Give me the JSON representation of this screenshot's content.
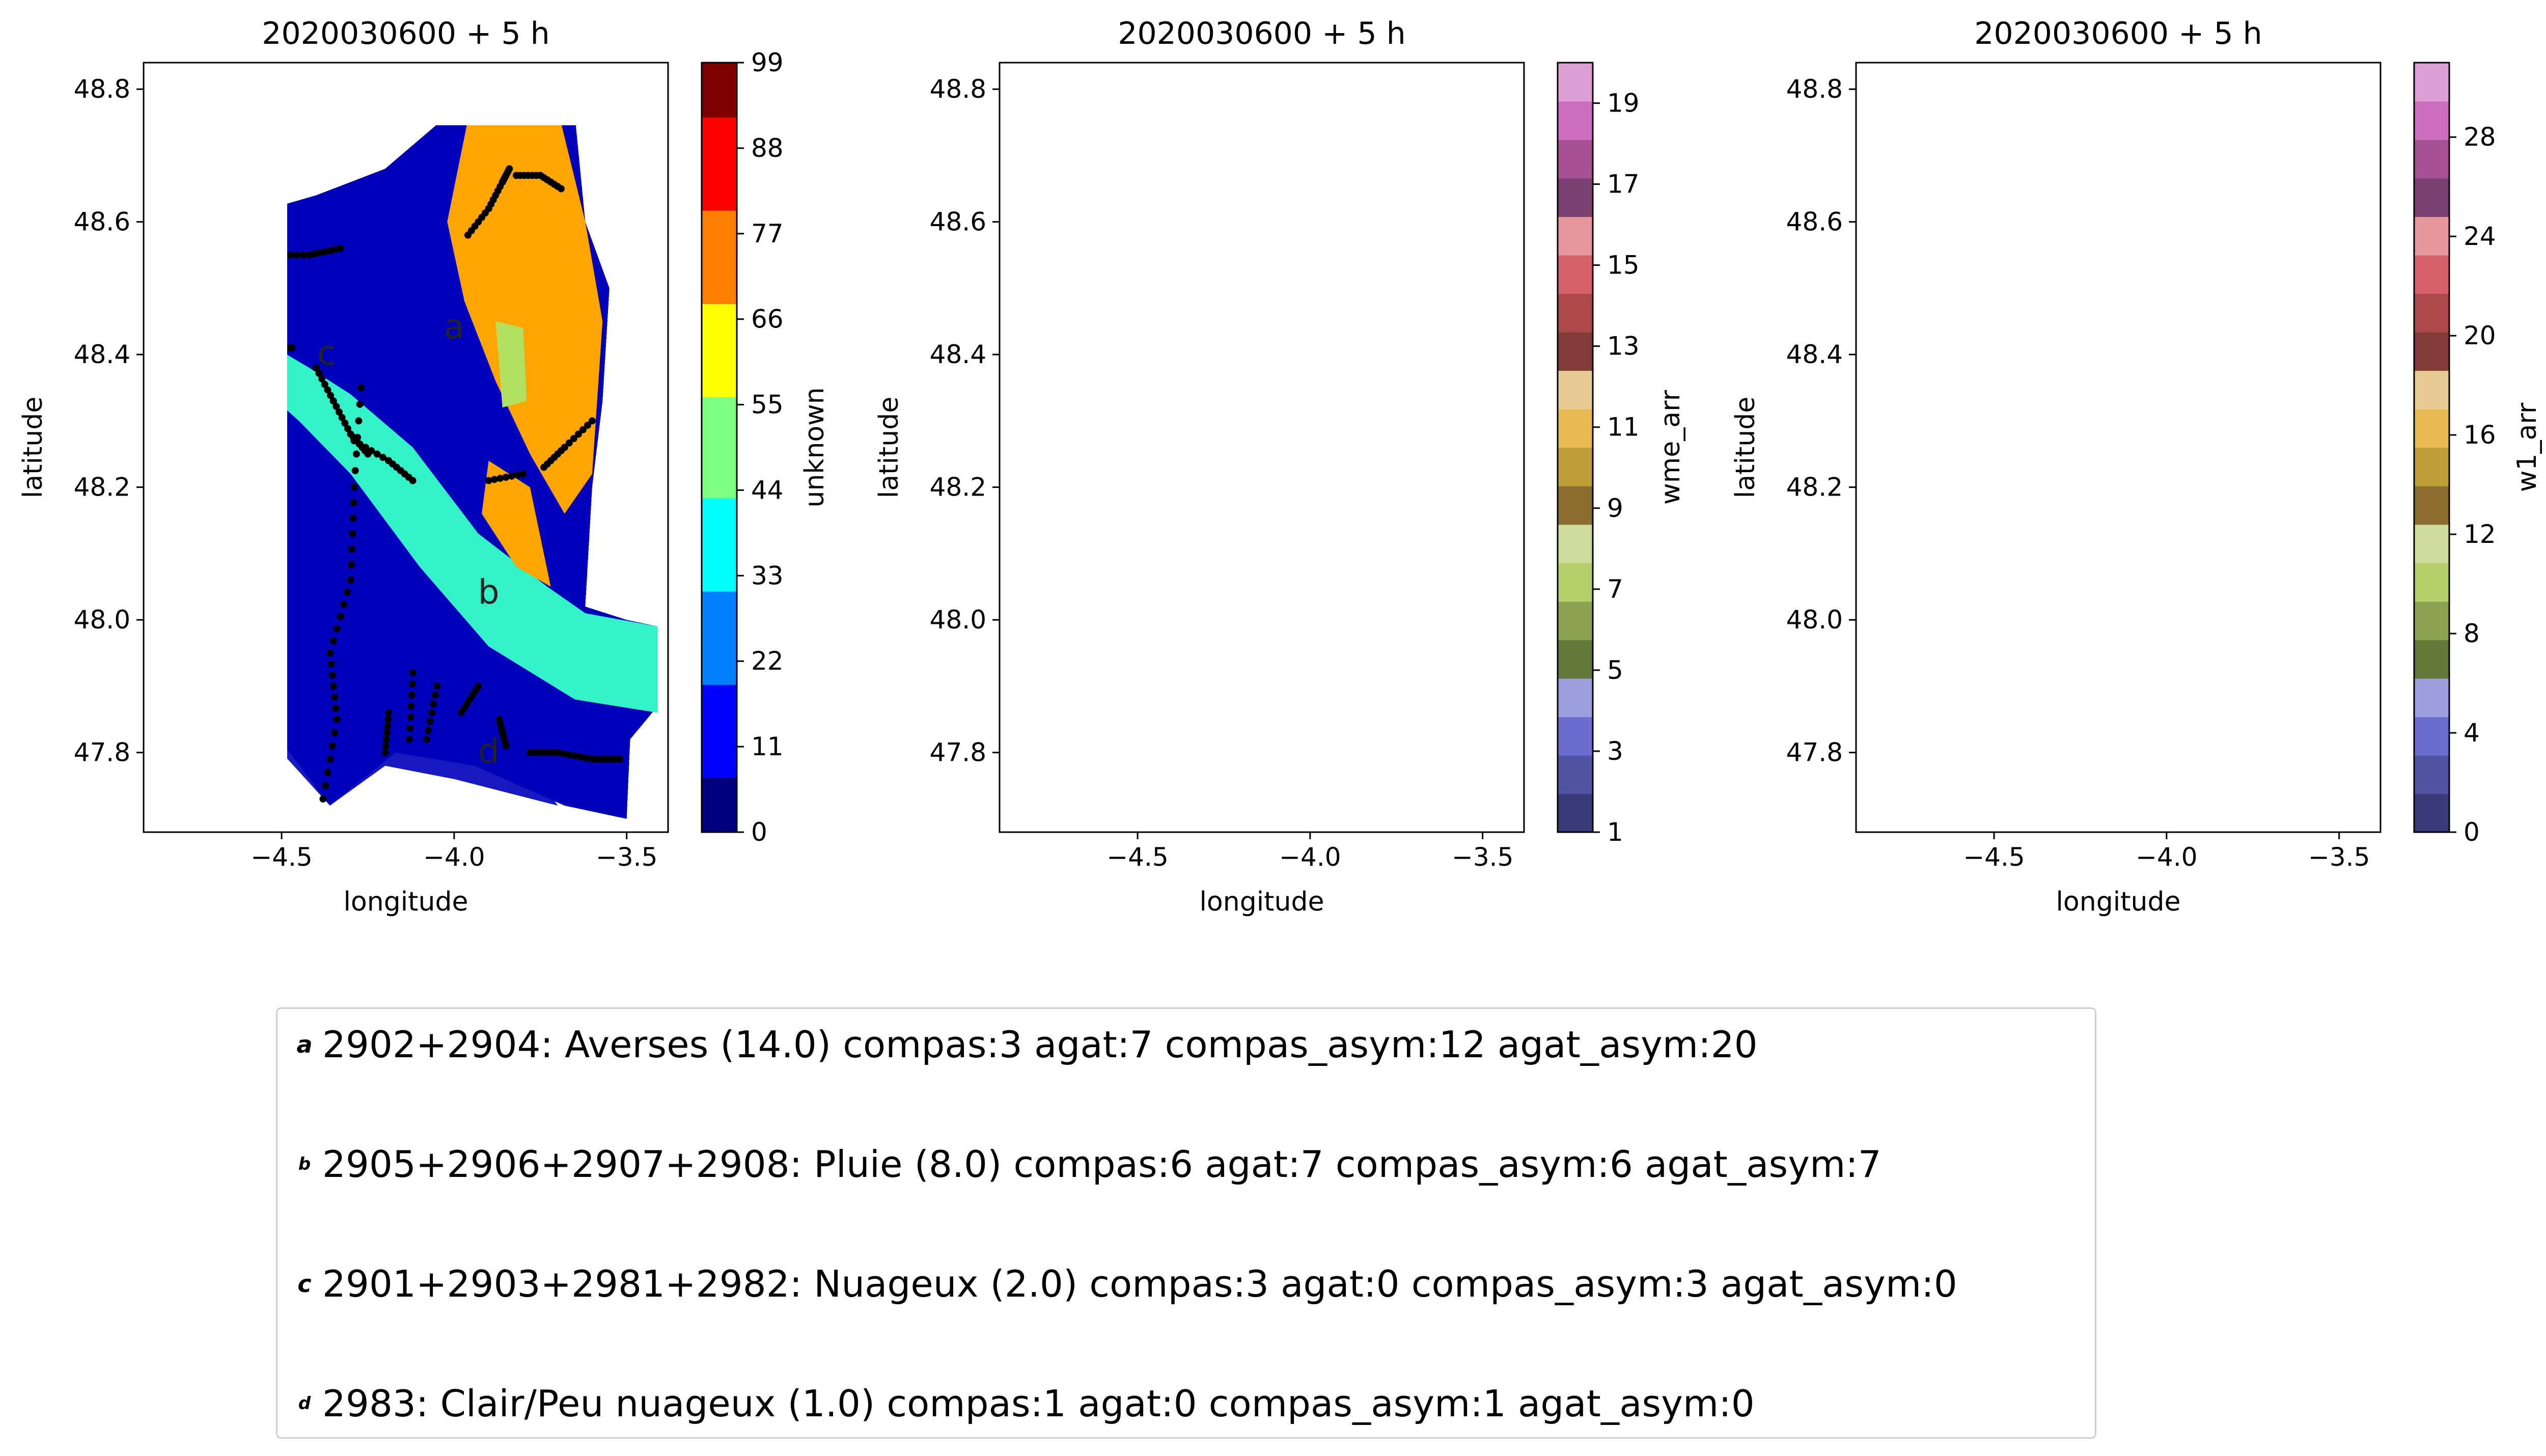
{
  "chart_data": [
    {
      "type": "heatmap",
      "title": "2020030600 + 5 h",
      "xlabel": "longitude",
      "ylabel": "latitude",
      "xlim": [
        -4.9,
        -3.38
      ],
      "ylim": [
        47.68,
        48.84
      ],
      "xticks": [
        -4.5,
        -4.0,
        -3.5
      ],
      "yticks": [
        47.8,
        48.0,
        48.2,
        48.4,
        48.6,
        48.8
      ],
      "colorbar": {
        "label": "unknown",
        "min": 0,
        "max": 99,
        "ticks": [
          0,
          11,
          22,
          33,
          44,
          55,
          66,
          77,
          88,
          99
        ],
        "colormap": "jet"
      }
    },
    {
      "type": "heatmap",
      "title": "2020030600 + 5 h",
      "xlabel": "longitude",
      "ylabel": "latitude",
      "xlim": [
        -4.9,
        -3.38
      ],
      "ylim": [
        47.68,
        48.84
      ],
      "xticks": [
        -4.5,
        -4.0,
        -3.5
      ],
      "yticks": [
        47.8,
        48.0,
        48.2,
        48.4,
        48.6,
        48.8
      ],
      "colorbar": {
        "label": "wme_arr",
        "min": 1,
        "max": 20,
        "ticks": [
          1,
          3,
          5,
          7,
          9,
          11,
          13,
          15,
          17,
          19
        ],
        "colormap": "tab20b"
      }
    },
    {
      "type": "heatmap",
      "title": "2020030600 + 5 h",
      "xlabel": "longitude",
      "ylabel": "latitude",
      "xlim": [
        -4.9,
        -3.38
      ],
      "ylim": [
        47.68,
        48.84
      ],
      "xticks": [
        -4.5,
        -4.0,
        -3.5
      ],
      "yticks": [
        47.8,
        48.0,
        48.2,
        48.4,
        48.6,
        48.8
      ],
      "colorbar": {
        "label": "w1_arr",
        "min": 0,
        "max": 31,
        "ticks": [
          0,
          4,
          8,
          12,
          16,
          20,
          24,
          28
        ],
        "colormap": "tab20b"
      }
    }
  ],
  "region_labels": [
    {
      "label": "a",
      "lon": -4.0,
      "lat": 48.44
    },
    {
      "label": "b",
      "lon": -3.9,
      "lat": 48.04
    },
    {
      "label": "c",
      "lon": -4.37,
      "lat": 48.4
    },
    {
      "label": "d",
      "lon": -3.9,
      "lat": 47.8
    }
  ],
  "palettes": {
    "jet": [
      "#00007f",
      "#0000ff",
      "#007fff",
      "#00ffff",
      "#7fff7f",
      "#ffff00",
      "#ff7f00",
      "#ff0000",
      "#7f0000"
    ],
    "tab20b": [
      "#393b79",
      "#5254a3",
      "#6b6ecf",
      "#9c9ede",
      "#637939",
      "#8ca252",
      "#b5cf6b",
      "#cedb9c",
      "#8c6d31",
      "#bd9e39",
      "#e7ba52",
      "#e7cb94",
      "#843c39",
      "#ad494a",
      "#d6616b",
      "#e7969c",
      "#7b4173",
      "#a55194",
      "#ce6dbd",
      "#de9ed6"
    ],
    "map1": {
      "sea": "#0000bb",
      "mid": "#33f2c8",
      "high": "#ffa500",
      "green": "#b2e060"
    },
    "map2": {
      "low": "#6b6ecf",
      "dark": "#393b79",
      "mid": "#8c9a56",
      "high": "#843c39",
      "light": "#cedb9c",
      "pink": "#e7969c"
    },
    "map3": {
      "low": "#393b79",
      "mid": "#637939",
      "high": "#843c39",
      "light": "#b5cf6b"
    }
  },
  "legend": [
    {
      "key": "a",
      "text": "2902+2904: Averses (14.0) compas:3 agat:7 compas_asym:12 agat_asym:20"
    },
    {
      "key": "b",
      "text": "2905+2906+2907+2908: Pluie (8.0) compas:6 agat:7 compas_asym:6 agat_asym:7"
    },
    {
      "key": "c",
      "text": "2901+2903+2981+2982: Nuageux (2.0) compas:3 agat:0 compas_asym:3 agat_asym:0"
    },
    {
      "key": "d",
      "text": "2983: Clair/Peu nuageux (1.0) compas:1 agat:0 compas_asym:1 agat_asym:0"
    }
  ]
}
